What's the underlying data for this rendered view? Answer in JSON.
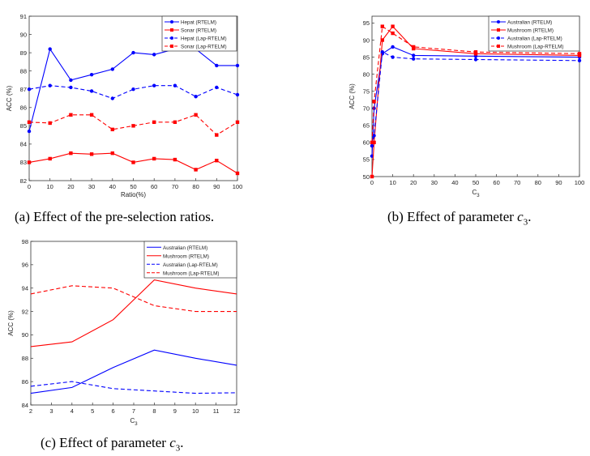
{
  "chart_data": [
    {
      "id": "a",
      "type": "line",
      "caption": "(a) Effect of the pre-selection ratios.",
      "xlabel": "Ratio(%)",
      "ylabel": "ACC (%)",
      "x": [
        0,
        10,
        20,
        30,
        40,
        50,
        60,
        70,
        80,
        90,
        100
      ],
      "xticks": [
        0,
        10,
        20,
        30,
        40,
        50,
        60,
        70,
        80,
        90,
        100
      ],
      "xlim": [
        0,
        100
      ],
      "ylim": [
        82,
        91
      ],
      "yticks": [
        82,
        83,
        84,
        85,
        86,
        87,
        88,
        89,
        90,
        91
      ],
      "legend_position": "top-right",
      "series": [
        {
          "name": "Hepat (RTELM)",
          "color": "#0000ff",
          "dash": false,
          "marker": "circle",
          "values": [
            84.7,
            89.2,
            87.5,
            87.8,
            88.1,
            89.0,
            88.9,
            89.2,
            89.2,
            88.3,
            88.3
          ]
        },
        {
          "name": "Sonar (RTELM)",
          "color": "#ff0000",
          "dash": false,
          "marker": "square",
          "values": [
            83.0,
            83.2,
            83.5,
            83.45,
            83.5,
            83.0,
            83.2,
            83.15,
            82.6,
            83.1,
            82.4
          ]
        },
        {
          "name": "Hepat (Lap-RTELM)",
          "color": "#0000ff",
          "dash": true,
          "marker": "circle",
          "values": [
            87.0,
            87.2,
            87.1,
            86.9,
            86.5,
            87.0,
            87.2,
            87.2,
            86.6,
            87.1,
            86.7
          ]
        },
        {
          "name": "Sonar (Lap-RTELM)",
          "color": "#ff0000",
          "dash": true,
          "marker": "square",
          "values": [
            85.2,
            85.15,
            85.6,
            85.6,
            84.8,
            85.0,
            85.2,
            85.2,
            85.6,
            84.5,
            85.2
          ]
        }
      ]
    },
    {
      "id": "b",
      "type": "line",
      "caption_prefix": "(b) Effect of parameter ",
      "caption_var": "c",
      "caption_sub": "3",
      "caption_suffix": ".",
      "xlabel": "C",
      "xlabel_sub": "3",
      "ylabel": "ACC (%)",
      "x": [
        0,
        1,
        5,
        10,
        20,
        50,
        100
      ],
      "xticks": [
        0,
        10,
        20,
        30,
        40,
        50,
        60,
        70,
        80,
        90,
        100
      ],
      "xlim": [
        0,
        100
      ],
      "ylim": [
        50,
        97
      ],
      "yticks": [
        50,
        55,
        60,
        65,
        70,
        75,
        80,
        85,
        90,
        95
      ],
      "legend_position": "top-right",
      "series": [
        {
          "name": "Australian (RTELM)",
          "color": "#0000ff",
          "dash": false,
          "marker": "circle",
          "values": [
            56.0,
            70.0,
            86.0,
            88.0,
            85.5,
            85.3,
            85.0
          ]
        },
        {
          "name": "Mushroom (RTELM)",
          "color": "#ff0000",
          "dash": false,
          "marker": "square",
          "values": [
            50.0,
            60.0,
            90.0,
            94.0,
            87.5,
            86.0,
            85.5
          ]
        },
        {
          "name": "Australian (Lap-RTELM)",
          "color": "#0000ff",
          "dash": true,
          "marker": "circle",
          "values": [
            59.0,
            62.0,
            86.5,
            85.0,
            84.5,
            84.3,
            84.0
          ]
        },
        {
          "name": "Mushroom (Lap-RTELM)",
          "color": "#ff0000",
          "dash": true,
          "marker": "square",
          "values": [
            60.0,
            72.0,
            94.0,
            92.0,
            88.0,
            86.5,
            86.0
          ]
        }
      ]
    },
    {
      "id": "c",
      "type": "line",
      "caption_prefix": "(c) Effect of parameter ",
      "caption_var": "c",
      "caption_sub": "3",
      "caption_suffix": ".",
      "xlabel": "C",
      "xlabel_sub": "3",
      "ylabel": "ACC (%)",
      "x": [
        2,
        4,
        6,
        8,
        10,
        12
      ],
      "xticks": [
        2,
        3,
        4,
        5,
        6,
        7,
        8,
        9,
        10,
        11,
        12
      ],
      "xlim": [
        2,
        12
      ],
      "ylim": [
        84,
        98
      ],
      "yticks": [
        84,
        86,
        88,
        90,
        92,
        94,
        96,
        98
      ],
      "legend_position": "top-right",
      "series": [
        {
          "name": "Australian (RTELM)",
          "color": "#0000ff",
          "dash": false,
          "marker": "none",
          "values": [
            85.0,
            85.5,
            87.2,
            88.7,
            88.0,
            87.4
          ]
        },
        {
          "name": "Mushroom (RTELM)",
          "color": "#ff0000",
          "dash": false,
          "marker": "none",
          "values": [
            89.0,
            89.4,
            91.3,
            94.7,
            94.0,
            93.5
          ]
        },
        {
          "name": "Australian (Lap-RTELM)",
          "color": "#0000ff",
          "dash": true,
          "marker": "none",
          "values": [
            85.6,
            86.0,
            85.4,
            85.2,
            85.0,
            85.05
          ]
        },
        {
          "name": "Mushroom (Lap-RTELM)",
          "color": "#ff0000",
          "dash": true,
          "marker": "none",
          "values": [
            93.5,
            94.2,
            94.0,
            92.5,
            92.0,
            92.0
          ]
        }
      ]
    }
  ]
}
